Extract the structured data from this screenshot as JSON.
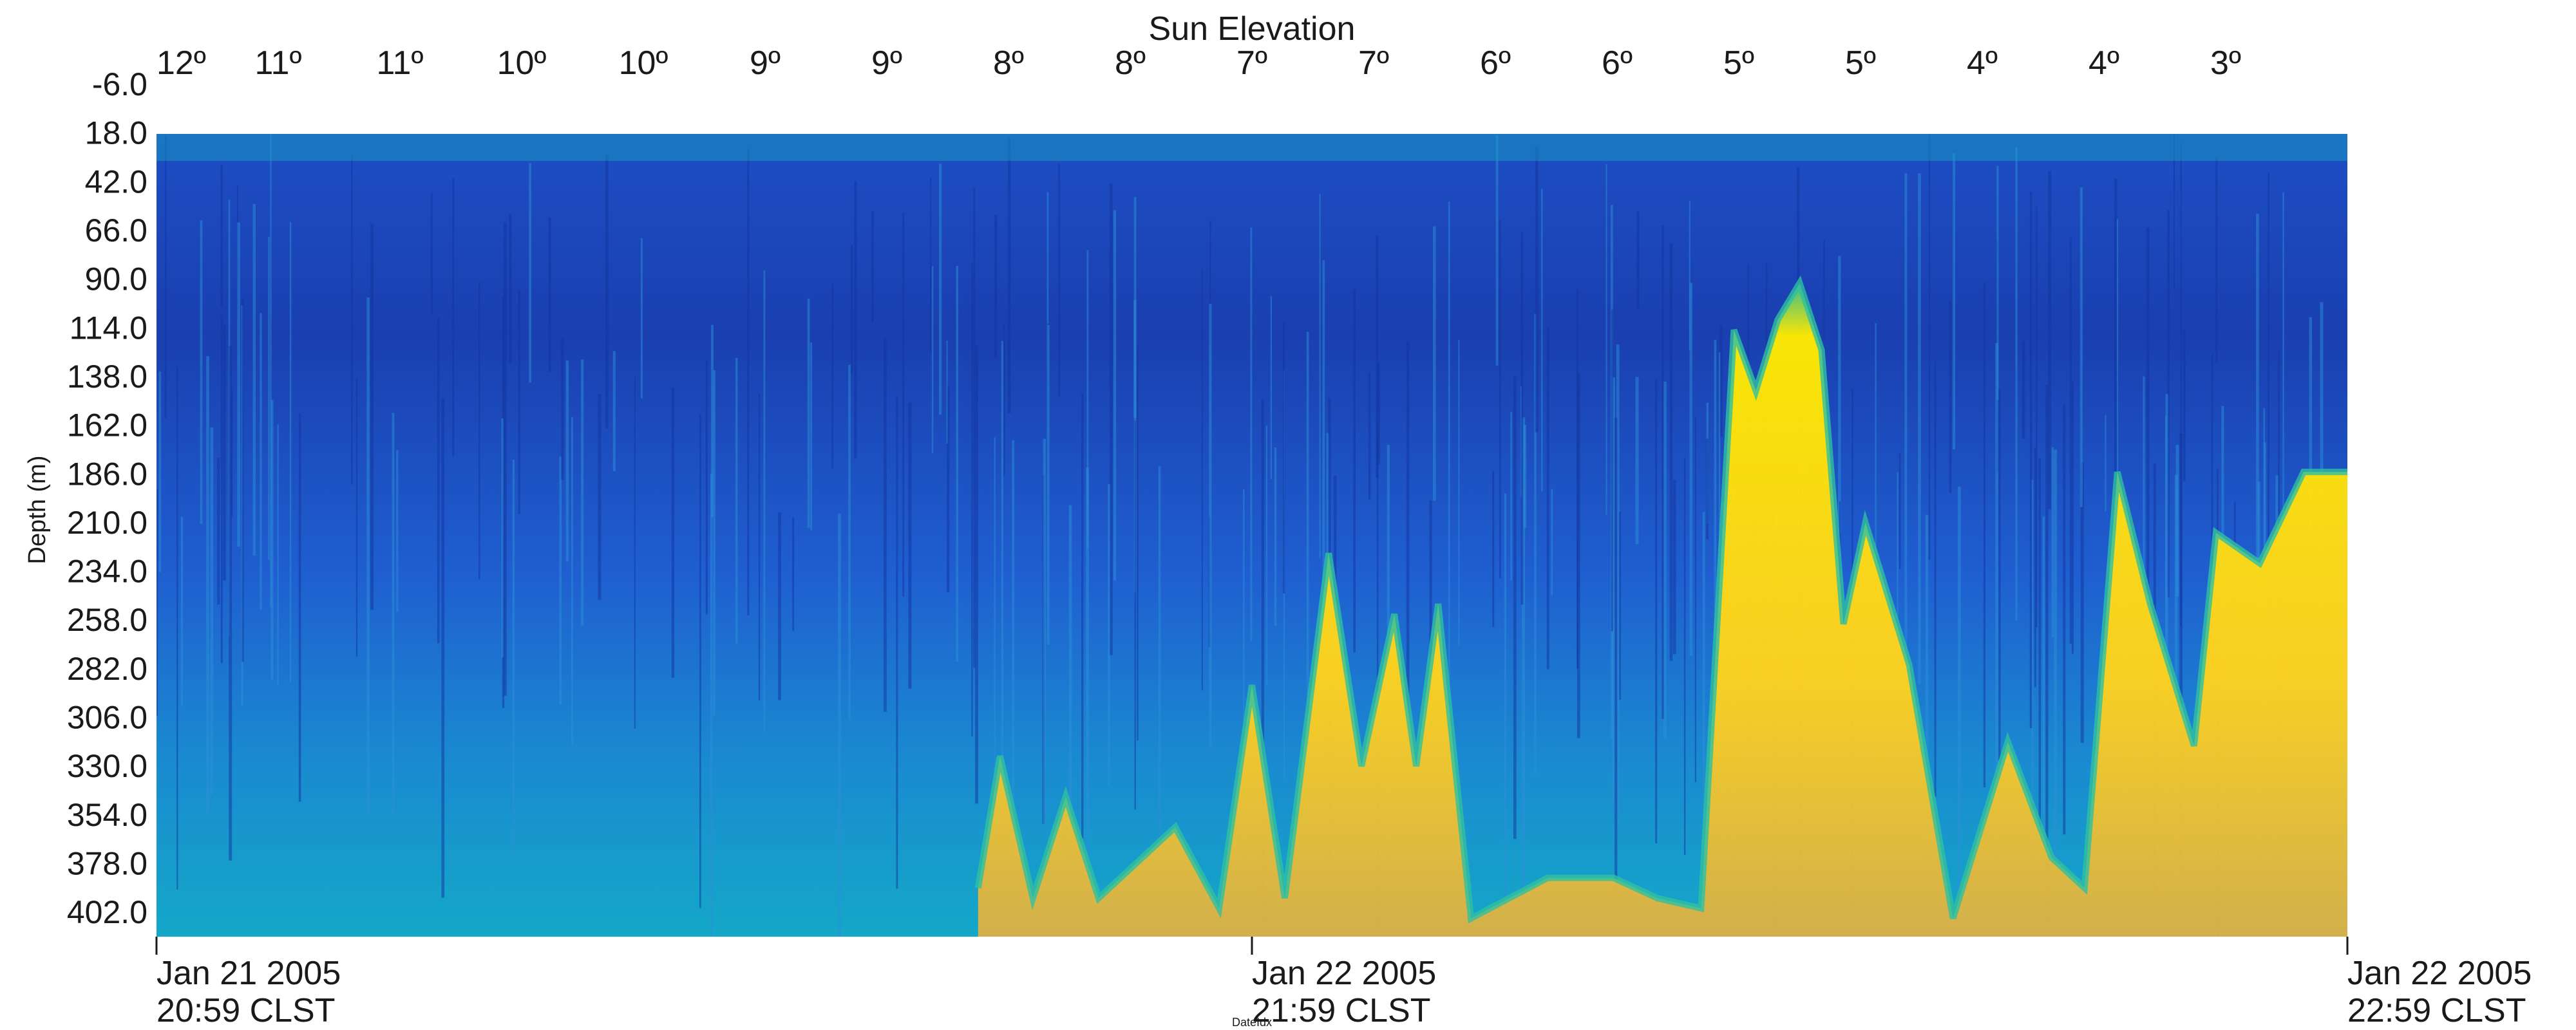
{
  "chart_data": {
    "type": "heatmap",
    "top_axis_title": "Sun Elevation",
    "ylabel": "Depth (m)",
    "xlabel": "DateIdx",
    "top_ticks": [
      "12º",
      "11º",
      "11º",
      "10º",
      "10º",
      "9º",
      "9º",
      "8º",
      "8º",
      "7º",
      "7º",
      "6º",
      "6º",
      "5º",
      "5º",
      "4º",
      "4º",
      "3º"
    ],
    "depth_ticks": [
      "-6.0",
      "18.0",
      "42.0",
      "66.0",
      "90.0",
      "114.0",
      "138.0",
      "162.0",
      "186.0",
      "210.0",
      "234.0",
      "258.0",
      "282.0",
      "306.0",
      "330.0",
      "354.0",
      "378.0",
      "402.0"
    ],
    "depth_range": [
      -6,
      414
    ],
    "near_surface_blank_to": 18,
    "x_ticks": [
      {
        "line1": "Jan 21 2005",
        "line2": "20:59 CLST"
      },
      {
        "line1": "Jan 22 2005",
        "line2": "21:59 CLST"
      },
      {
        "line1": "Jan 22 2005",
        "line2": "22:59 CLST"
      }
    ],
    "time_range_hours": [
      0,
      2
    ],
    "colors": {
      "deep_blue": "#1a3fb0",
      "blue": "#1f5fd0",
      "teal": "#14a0c8",
      "green": "#3cc08a",
      "yellow": "#ffea00",
      "gray_band": "#a8a8a8"
    },
    "scattering_layer_depths_m": [
      {
        "t": 0.75,
        "d": 390
      },
      {
        "t": 0.77,
        "d": 325
      },
      {
        "t": 0.8,
        "d": 395
      },
      {
        "t": 0.83,
        "d": 345
      },
      {
        "t": 0.86,
        "d": 395
      },
      {
        "t": 0.9,
        "d": 375
      },
      {
        "t": 0.93,
        "d": 360
      },
      {
        "t": 0.97,
        "d": 400
      },
      {
        "t": 1.0,
        "d": 290
      },
      {
        "t": 1.03,
        "d": 395
      },
      {
        "t": 1.07,
        "d": 225
      },
      {
        "t": 1.1,
        "d": 330
      },
      {
        "t": 1.13,
        "d": 255
      },
      {
        "t": 1.15,
        "d": 330
      },
      {
        "t": 1.17,
        "d": 250
      },
      {
        "t": 1.2,
        "d": 405
      },
      {
        "t": 1.27,
        "d": 385
      },
      {
        "t": 1.33,
        "d": 385
      },
      {
        "t": 1.37,
        "d": 395
      },
      {
        "t": 1.41,
        "d": 400
      },
      {
        "t": 1.44,
        "d": 115
      },
      {
        "t": 1.46,
        "d": 145
      },
      {
        "t": 1.48,
        "d": 110
      },
      {
        "t": 1.5,
        "d": 92
      },
      {
        "t": 1.52,
        "d": 125
      },
      {
        "t": 1.54,
        "d": 260
      },
      {
        "t": 1.56,
        "d": 210
      },
      {
        "t": 1.6,
        "d": 280
      },
      {
        "t": 1.64,
        "d": 405
      },
      {
        "t": 1.69,
        "d": 318
      },
      {
        "t": 1.73,
        "d": 375
      },
      {
        "t": 1.76,
        "d": 390
      },
      {
        "t": 1.79,
        "d": 185
      },
      {
        "t": 1.82,
        "d": 250
      },
      {
        "t": 1.86,
        "d": 320
      },
      {
        "t": 1.88,
        "d": 215
      },
      {
        "t": 1.92,
        "d": 230
      },
      {
        "t": 1.96,
        "d": 185
      },
      {
        "t": 2.0,
        "d": 185
      }
    ]
  }
}
